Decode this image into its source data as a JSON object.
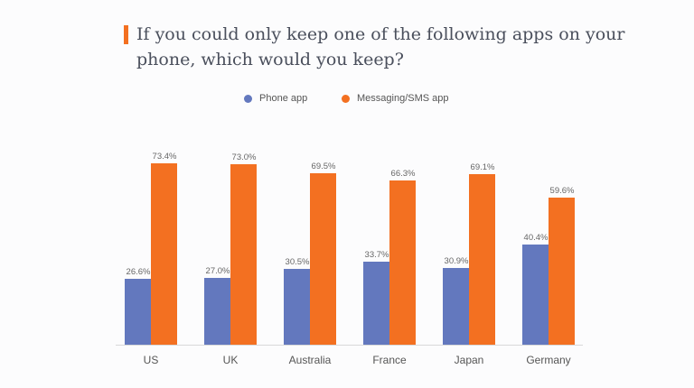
{
  "title": "If you could only keep one of the following apps on your phone, which would you keep?",
  "legend": [
    {
      "label": "Phone app",
      "color": "#6378be"
    },
    {
      "label": "Messaging/SMS app",
      "color": "#f37021"
    }
  ],
  "chart_data": {
    "type": "bar",
    "title": "If you could only keep one of the following apps on your phone, which would you keep?",
    "categories": [
      "US",
      "UK",
      "Australia",
      "France",
      "Japan",
      "Germany"
    ],
    "series": [
      {
        "name": "Phone app",
        "color": "#6378be",
        "values": [
          26.6,
          27.0,
          30.5,
          33.7,
          30.9,
          40.4
        ],
        "labels": [
          "26.6%",
          "27.0%",
          "30.5%",
          "33.7%",
          "30.9%",
          "40.4%"
        ]
      },
      {
        "name": "Messaging/SMS app",
        "color": "#f37021",
        "values": [
          73.4,
          73.0,
          69.5,
          66.3,
          69.1,
          59.6
        ],
        "labels": [
          "73.4%",
          "73.0%",
          "69.5%",
          "66.3%",
          "69.1%",
          "59.6%"
        ]
      }
    ],
    "xlabel": "",
    "ylabel": "",
    "ylim": [
      0,
      80
    ],
    "grid": false,
    "legend_position": "top"
  }
}
